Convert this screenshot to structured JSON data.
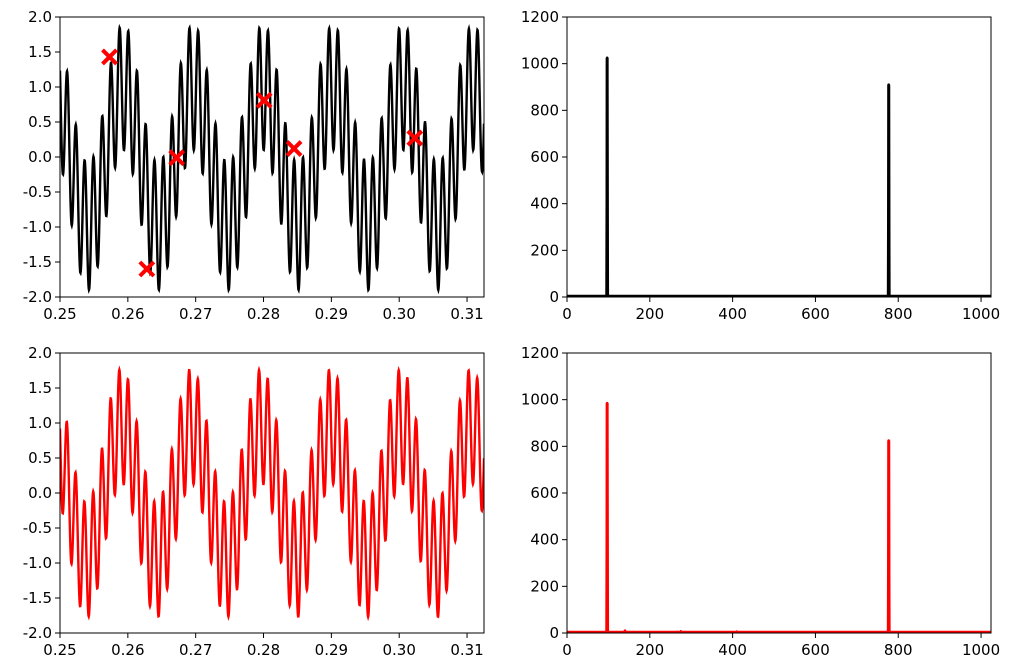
{
  "chart_data": [
    {
      "type": "line",
      "title": "",
      "xlabel": "",
      "ylabel": "",
      "xlim": [
        0.25,
        0.3125
      ],
      "ylim": [
        -2.0,
        2.0
      ],
      "xticks": [
        "0.25",
        "0.26",
        "0.27",
        "0.28",
        "0.29",
        "0.30",
        "0.31"
      ],
      "yticks": [
        "-2.0",
        "-1.5",
        "-1.0",
        "-0.5",
        "0.0",
        "0.5",
        "1.0",
        "1.5",
        "2.0"
      ],
      "grid": false,
      "signal": {
        "description": "sum of sinusoids",
        "components": [
          {
            "frequency": 97,
            "amplitude": 1.0,
            "phase": 0.6
          },
          {
            "frequency": 777,
            "amplitude": 0.9,
            "phase": 1.1
          }
        ],
        "color": "#000000"
      },
      "markers": {
        "color": "#ff0000",
        "shape": "x",
        "points": [
          {
            "x": 0.2573,
            "y": 1.43
          },
          {
            "x": 0.2628,
            "y": -1.6
          },
          {
            "x": 0.2672,
            "y": -0.01
          },
          {
            "x": 0.2801,
            "y": 0.81
          },
          {
            "x": 0.2845,
            "y": 0.12
          },
          {
            "x": 0.3023,
            "y": 0.27
          }
        ]
      }
    },
    {
      "type": "line",
      "title": "",
      "xlabel": "",
      "ylabel": "",
      "xlim": [
        0,
        1024
      ],
      "ylim": [
        0,
        1200
      ],
      "xticks": [
        "0",
        "200",
        "400",
        "600",
        "800",
        "1000"
      ],
      "yticks": [
        "0",
        "200",
        "400",
        "600",
        "800",
        "1000",
        "1200"
      ],
      "grid": false,
      "color": "#000000",
      "peaks": [
        {
          "x": 97,
          "y": 1025
        },
        {
          "x": 777,
          "y": 910
        }
      ],
      "noise": []
    },
    {
      "type": "line",
      "title": "",
      "xlabel": "",
      "ylabel": "",
      "xlim": [
        0.25,
        0.3125
      ],
      "ylim": [
        -2.0,
        2.0
      ],
      "xticks": [
        "0.25",
        "0.26",
        "0.27",
        "0.28",
        "0.29",
        "0.30",
        "0.31"
      ],
      "yticks": [
        "-2.0",
        "-1.5",
        "-1.0",
        "-0.5",
        "0.0",
        "0.5",
        "1.0",
        "1.5",
        "2.0"
      ],
      "grid": false,
      "signal": {
        "description": "sum of sinusoids",
        "components": [
          {
            "frequency": 97,
            "amplitude": 0.96,
            "phase": 0.75
          },
          {
            "frequency": 777,
            "amplitude": 0.82,
            "phase": 1.3
          }
        ],
        "color": "#ff0000"
      }
    },
    {
      "type": "line",
      "title": "",
      "xlabel": "",
      "ylabel": "",
      "xlim": [
        0,
        1024
      ],
      "ylim": [
        0,
        1200
      ],
      "xticks": [
        "0",
        "200",
        "400",
        "600",
        "800",
        "1000"
      ],
      "yticks": [
        "0",
        "200",
        "400",
        "600",
        "800",
        "1000",
        "1200"
      ],
      "grid": false,
      "color": "#ff0000",
      "peaks": [
        {
          "x": 97,
          "y": 985
        },
        {
          "x": 777,
          "y": 825
        }
      ],
      "noise": [
        {
          "x": 140,
          "y": 10
        },
        {
          "x": 275,
          "y": 7
        },
        {
          "x": 410,
          "y": 6
        },
        {
          "x": 525,
          "y": 4
        }
      ]
    }
  ]
}
